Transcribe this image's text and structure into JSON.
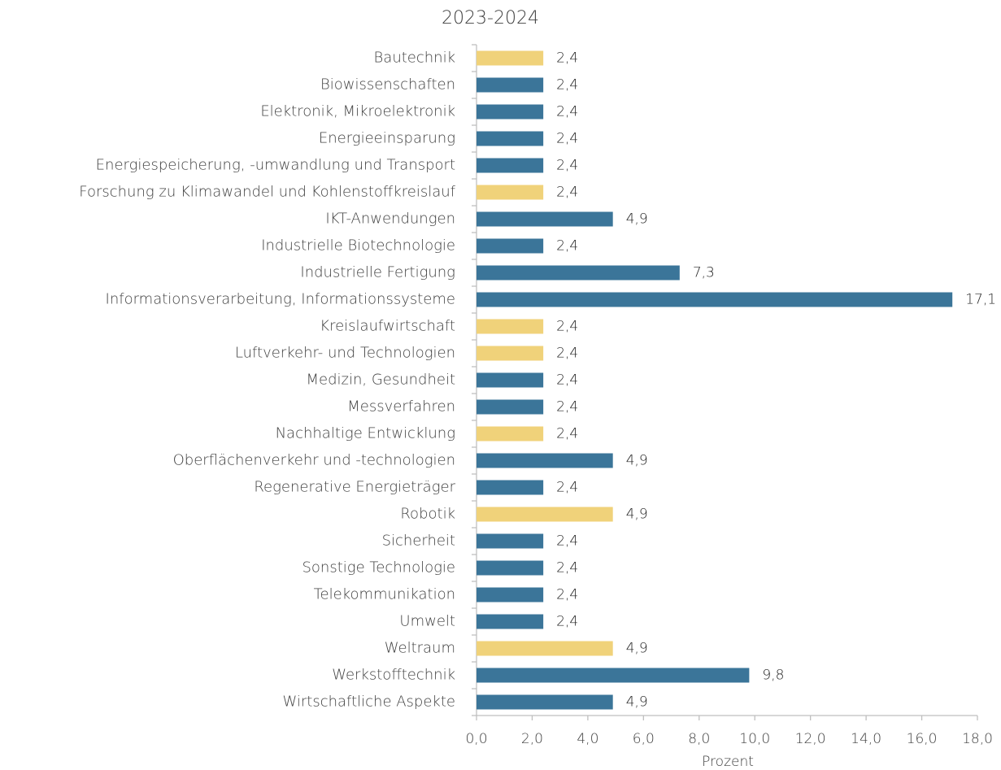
{
  "chart_data": {
    "type": "bar",
    "orientation": "horizontal",
    "title": "2023-2024",
    "x_label": "Prozent",
    "categories": [
      "Bautechnik",
      "Biowissenschaften",
      "Elektronik, Mikroelektronik",
      "Energieeinsparung",
      "Energiespeicherung, -umwandlung und Transport",
      "Forschung zu Klimawandel und Kohlenstoffkreislauf",
      "IKT-Anwendungen",
      "Industrielle Biotechnologie",
      "Industrielle Fertigung",
      "Informationsverarbeitung, Informationssysteme",
      "Kreislaufwirtschaft",
      "Luftverkehr- und Technologien",
      "Medizin, Gesundheit",
      "Messverfahren",
      "Nachhaltige Entwicklung",
      "Oberflächenverkehr und -technologien",
      "Regenerative Energieträger",
      "Robotik",
      "Sicherheit",
      "Sonstige Technologie",
      "Telekommunikation",
      "Umwelt",
      "Weltraum",
      "Werkstofftechnik",
      "Wirtschaftliche Aspekte"
    ],
    "values": [
      2.4,
      2.4,
      2.4,
      2.4,
      2.4,
      2.4,
      4.9,
      2.4,
      7.3,
      17.1,
      2.4,
      2.4,
      2.4,
      2.4,
      2.4,
      4.9,
      2.4,
      4.9,
      2.4,
      2.4,
      2.4,
      2.4,
      4.9,
      9.8,
      4.9
    ],
    "value_labels": [
      "2,4",
      "2,4",
      "2,4",
      "2,4",
      "2,4",
      "2,4",
      "4,9",
      "2,4",
      "7,3",
      "17,1",
      "2,4",
      "2,4",
      "2,4",
      "2,4",
      "2,4",
      "4,9",
      "2,4",
      "4,9",
      "2,4",
      "2,4",
      "2,4",
      "2,4",
      "4,9",
      "9,8",
      "4,9"
    ],
    "colors": [
      "#f0d27a",
      "#3b7599",
      "#3b7599",
      "#3b7599",
      "#3b7599",
      "#f0d27a",
      "#3b7599",
      "#3b7599",
      "#3b7599",
      "#3b7599",
      "#f0d27a",
      "#f0d27a",
      "#3b7599",
      "#3b7599",
      "#f0d27a",
      "#3b7599",
      "#3b7599",
      "#f0d27a",
      "#3b7599",
      "#3b7599",
      "#3b7599",
      "#3b7599",
      "#f0d27a",
      "#3b7599",
      "#3b7599"
    ],
    "xlim": [
      0,
      18
    ],
    "xticks": [
      {
        "value": 0,
        "label": "0,0"
      },
      {
        "value": 2,
        "label": "2,0"
      },
      {
        "value": 4,
        "label": "4,0"
      },
      {
        "value": 6,
        "label": "6,0"
      },
      {
        "value": 8,
        "label": "8,0"
      },
      {
        "value": 10,
        "label": "10,0"
      },
      {
        "value": 12,
        "label": "12,0"
      },
      {
        "value": 14,
        "label": "14,0"
      },
      {
        "value": 16,
        "label": "16,0"
      },
      {
        "value": 18,
        "label": "18,0"
      }
    ],
    "grid": false
  }
}
